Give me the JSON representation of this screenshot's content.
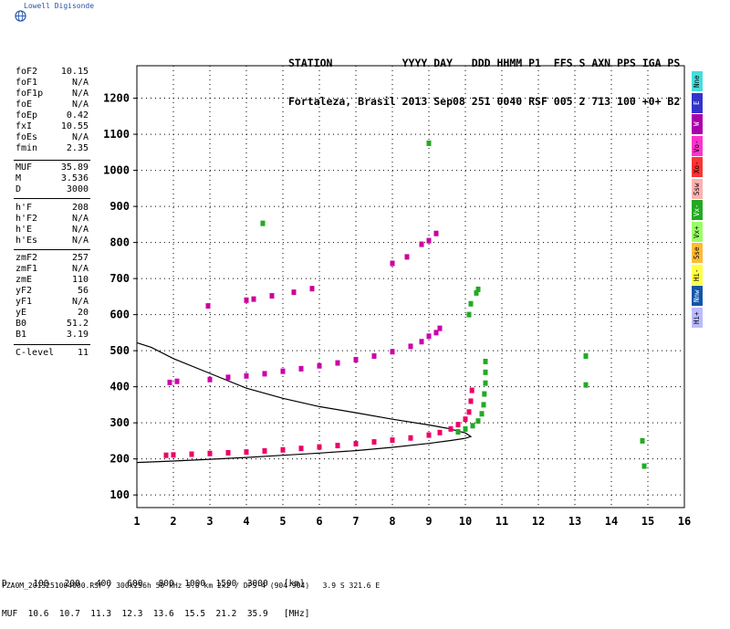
{
  "logo": {
    "text": "Lowell Digisonde",
    "icon": "globe-icon"
  },
  "header": {
    "line1": "STATION           YYYY DAY   DDD HHMM P1  FFS S AXN PPS IGA PS",
    "line2": "Fortaleza, Brasil 2013 Sep08 251 0040 RSF 005 2 713 100 +0+ B2"
  },
  "params_freq": [
    {
      "label": "foF2",
      "value": "10.15"
    },
    {
      "label": "foF1",
      "value": "N/A"
    },
    {
      "label": "foF1p",
      "value": "N/A"
    },
    {
      "label": "foE",
      "value": "N/A"
    },
    {
      "label": "foEp",
      "value": "0.42"
    },
    {
      "label": "fxI",
      "value": "10.55"
    },
    {
      "label": "foEs",
      "value": "N/A"
    },
    {
      "label": "fmin",
      "value": "2.35"
    }
  ],
  "params_muf": [
    {
      "label": "MUF",
      "value": "35.89"
    },
    {
      "label": "M",
      "value": "3.536"
    },
    {
      "label": "D",
      "value": "3000"
    }
  ],
  "params_height": [
    {
      "label": "h'F",
      "value": "208"
    },
    {
      "label": "h'F2",
      "value": "N/A"
    },
    {
      "label": "h'E",
      "value": "N/A"
    },
    {
      "label": "h'Es",
      "value": "N/A"
    }
  ],
  "params_profile": [
    {
      "label": "zmF2",
      "value": "257"
    },
    {
      "label": "zmF1",
      "value": "N/A"
    },
    {
      "label": "zmE",
      "value": "110"
    },
    {
      "label": "yF2",
      "value": "56"
    },
    {
      "label": "yF1",
      "value": "N/A"
    },
    {
      "label": "yE",
      "value": "20"
    },
    {
      "label": "B0",
      "value": "51.2"
    },
    {
      "label": "B1",
      "value": "3.19"
    }
  ],
  "params_clevel": [
    {
      "label": "C-level",
      "value": "11"
    }
  ],
  "legend": [
    {
      "label": "Nne",
      "color": "#44dddd"
    },
    {
      "label": "E",
      "color": "#3333cc"
    },
    {
      "label": "W",
      "color": "#aa00aa"
    },
    {
      "label": "Vo-",
      "color": "#ff33cc"
    },
    {
      "label": "Xo-",
      "color": "#ff3333"
    },
    {
      "label": "Ssw",
      "color": "#ffb0b0"
    },
    {
      "label": "Vx-",
      "color": "#22aa22"
    },
    {
      "label": "Vx+",
      "color": "#99ff66"
    },
    {
      "label": "Sse",
      "color": "#ffbb33"
    },
    {
      "label": "Hi-",
      "color": "#ffff44"
    },
    {
      "label": "Nnw",
      "color": "#1155aa"
    },
    {
      "label": "Hi+",
      "color": "#bbbbff"
    }
  ],
  "muf_table": {
    "line1": "D     100   200   400   600   800  1000  1500  3000   [km]",
    "line2": "MUF  10.6  10.7  11.3  12.3  13.6  15.5  21.2  35.9   [MHz]"
  },
  "footer": "FZA0M_2013251004000.RSF / 300x256h 50 kHz 5.0 km 2x2 / DPS-4 (904-904)   3.9 S 321.6 E",
  "chart_data": {
    "type": "scatter",
    "xlabel": "",
    "ylabel": "",
    "xlim": [
      1,
      16
    ],
    "ylim": [
      65,
      1290
    ],
    "xticks": [
      1,
      2,
      3,
      4,
      5,
      6,
      7,
      8,
      9,
      10,
      11,
      12,
      13,
      14,
      15,
      16
    ],
    "yticks": [
      100,
      200,
      300,
      400,
      500,
      600,
      700,
      800,
      900,
      1000,
      1100,
      1200
    ],
    "grid": "dotted",
    "profile_curve": [
      [
        1.0,
        190
      ],
      [
        2.0,
        194
      ],
      [
        3.0,
        199
      ],
      [
        4.0,
        204
      ],
      [
        5.0,
        210
      ],
      [
        6.0,
        216
      ],
      [
        7.0,
        223
      ],
      [
        8.0,
        232
      ],
      [
        9.0,
        243
      ],
      [
        9.6,
        251
      ],
      [
        10.0,
        257
      ],
      [
        10.15,
        262
      ],
      [
        10.0,
        272
      ],
      [
        9.5,
        285
      ],
      [
        9.0,
        294
      ],
      [
        8.0,
        310
      ],
      [
        7.0,
        328
      ],
      [
        6.0,
        345
      ],
      [
        5.0,
        368
      ],
      [
        4.0,
        396
      ],
      [
        3.0,
        437
      ],
      [
        2.0,
        478
      ],
      [
        1.4,
        509
      ],
      [
        1.0,
        522
      ]
    ],
    "traces": [
      {
        "name": "F-layer O trace",
        "color": "#ee0066",
        "points": [
          [
            1.8,
            210
          ],
          [
            2.0,
            211
          ],
          [
            2.5,
            213
          ],
          [
            3.0,
            215
          ],
          [
            3.5,
            217
          ],
          [
            4.0,
            219
          ],
          [
            4.5,
            222
          ],
          [
            5.0,
            225
          ],
          [
            5.5,
            229
          ],
          [
            6.0,
            233
          ],
          [
            6.5,
            237
          ],
          [
            7.0,
            242
          ],
          [
            7.5,
            247
          ],
          [
            8.0,
            252
          ],
          [
            8.5,
            258
          ],
          [
            9.0,
            266
          ],
          [
            9.3,
            273
          ],
          [
            9.6,
            283
          ],
          [
            9.8,
            295
          ],
          [
            10.0,
            310
          ],
          [
            10.1,
            330
          ],
          [
            10.15,
            360
          ],
          [
            10.18,
            390
          ]
        ]
      },
      {
        "name": "F-layer X trace",
        "color": "#22aa22",
        "points": [
          [
            9.8,
            275
          ],
          [
            10.0,
            283
          ],
          [
            10.2,
            292
          ],
          [
            10.35,
            305
          ],
          [
            10.45,
            325
          ],
          [
            10.5,
            350
          ],
          [
            10.52,
            380
          ],
          [
            10.55,
            410
          ],
          [
            10.55,
            440
          ],
          [
            10.55,
            470
          ]
        ]
      },
      {
        "name": "2nd hop",
        "color": "#cc00aa",
        "points": [
          [
            1.9,
            412
          ],
          [
            2.1,
            415
          ],
          [
            3.0,
            420
          ],
          [
            3.5,
            426
          ],
          [
            4.0,
            430
          ],
          [
            4.5,
            436
          ],
          [
            5.0,
            443
          ],
          [
            5.5,
            450
          ],
          [
            6.0,
            458
          ],
          [
            6.5,
            466
          ],
          [
            7.0,
            475
          ],
          [
            7.5,
            485
          ],
          [
            8.0,
            497
          ],
          [
            8.5,
            512
          ],
          [
            8.8,
            525
          ],
          [
            9.0,
            540
          ],
          [
            9.2,
            550
          ],
          [
            9.3,
            562
          ]
        ]
      },
      {
        "name": "3rd hop",
        "color": "#cc0099",
        "points": [
          [
            2.95,
            624
          ],
          [
            4.0,
            640
          ],
          [
            4.2,
            643
          ],
          [
            4.7,
            652
          ],
          [
            5.3,
            662
          ],
          [
            5.8,
            672
          ],
          [
            8.0,
            742
          ],
          [
            8.4,
            760
          ],
          [
            8.8,
            795
          ],
          [
            9.0,
            805
          ],
          [
            9.2,
            825
          ]
        ]
      },
      {
        "name": "scatter",
        "color": "#22aa22",
        "points": [
          [
            4.45,
            853
          ],
          [
            10.1,
            600
          ],
          [
            10.15,
            630
          ],
          [
            10.3,
            660
          ],
          [
            10.35,
            670
          ],
          [
            9.0,
            1075
          ],
          [
            13.3,
            485
          ],
          [
            13.3,
            405
          ],
          [
            14.9,
            180
          ],
          [
            14.85,
            250
          ]
        ]
      }
    ]
  }
}
